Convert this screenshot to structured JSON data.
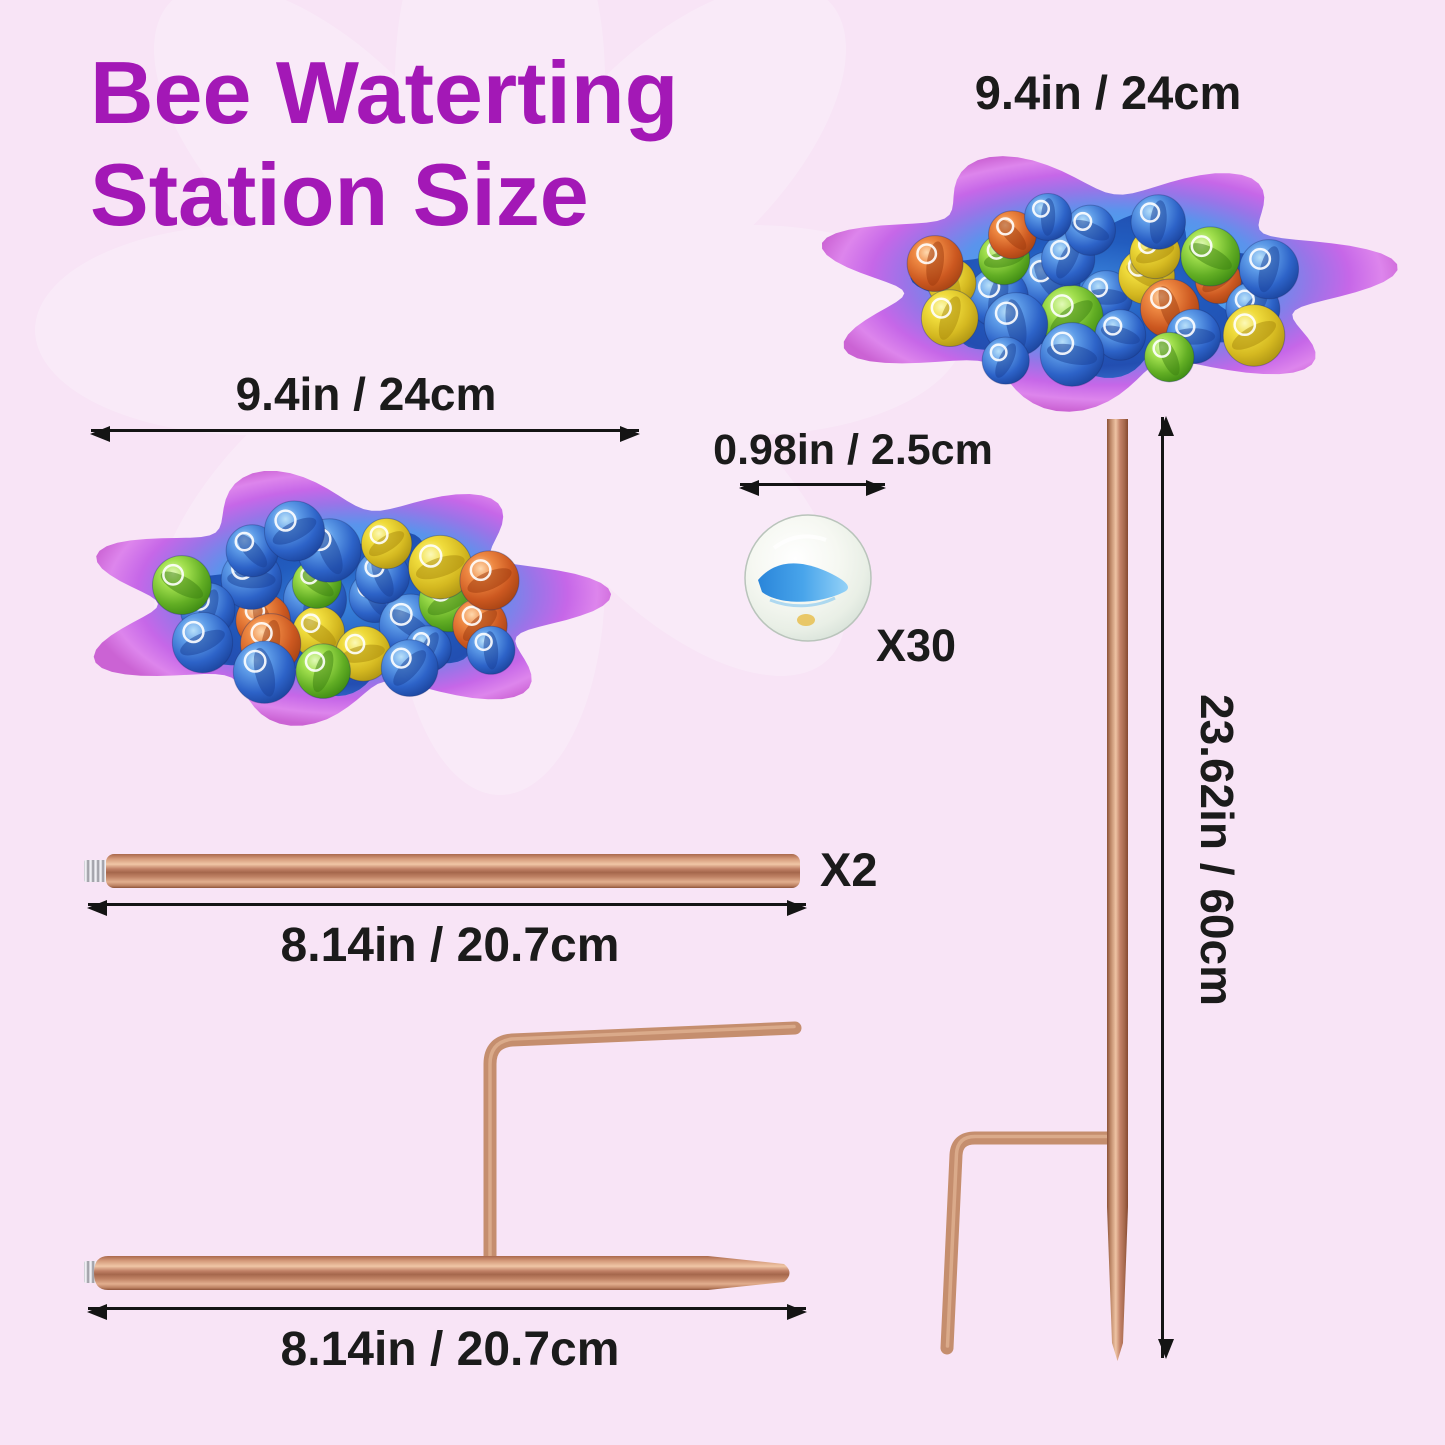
{
  "title": {
    "line1": "Bee Waterting",
    "line2": "Station Size"
  },
  "dish_top": {
    "size_label": "9.4in / 24cm"
  },
  "dish_left": {
    "size_label": "9.4in / 24cm"
  },
  "marble": {
    "size_label": "0.98in / 2.5cm",
    "count_label": "X30"
  },
  "rod": {
    "count_label": "X2",
    "length_label": "8.14in / 20.7cm"
  },
  "stake_rod": {
    "length_label": "8.14in / 20.7cm"
  },
  "stake": {
    "height_label": "23.62in / 60cm"
  },
  "colors": {
    "background": "#f8e4f6",
    "title_purple": "#a318b6",
    "measurement_text": "#1b1b1b",
    "dimension_line": "#141414",
    "copper_rod": "#c58e6e",
    "thread_silver": "#c9c9cf",
    "dish_rim_magenta": "#cb63d4",
    "dish_blue": "#3fa6ee",
    "water_blue": "#2058bc",
    "marble_yellow": "#f0dc3c",
    "marble_green": "#a2e04e",
    "marble_orange": "#ee8842"
  }
}
